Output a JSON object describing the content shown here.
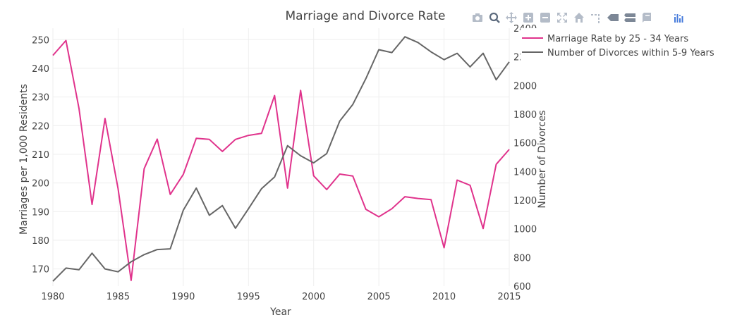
{
  "chart_data": {
    "type": "line",
    "title": "Marriage and Divorce Rate",
    "xlabel": "Year",
    "ylabel": "Marriages per 1,000 Residents",
    "y2label": "Number of Divorces",
    "xlim": [
      1980,
      2015
    ],
    "ylim": [
      164,
      254
    ],
    "y2lim": [
      600,
      2400
    ],
    "x_ticks": [
      1980,
      1985,
      1990,
      1995,
      2000,
      2005,
      2010,
      2015
    ],
    "y_ticks": [
      170,
      180,
      190,
      200,
      210,
      220,
      230,
      240,
      250
    ],
    "y2_ticks": [
      600,
      800,
      1000,
      1200,
      1400,
      1600,
      1800,
      2000,
      2200,
      2400
    ],
    "grid": true,
    "legend_position": "top-right",
    "x": [
      1980,
      1981,
      1982,
      1983,
      1984,
      1985,
      1986,
      1987,
      1988,
      1989,
      1990,
      1991,
      1992,
      1993,
      1994,
      1995,
      1996,
      1997,
      1998,
      1999,
      2000,
      2001,
      2002,
      2003,
      2004,
      2005,
      2006,
      2007,
      2008,
      2009,
      2010,
      2011,
      2012,
      2013,
      2014,
      2015
    ],
    "series": [
      {
        "name": "Marriage Rate by 25 - 34 Years",
        "axis": "y",
        "color": "#e0338c",
        "values": [
          244.5,
          249.7,
          226,
          192.5,
          222.5,
          198,
          166,
          205,
          215.3,
          196,
          203,
          215.6,
          215.2,
          211,
          215.2,
          216.6,
          217.3,
          230.5,
          198.2,
          232.3,
          202.5,
          197.7,
          203.1,
          202.4,
          190.8,
          188.2,
          191,
          195.2,
          194.6,
          194.2,
          177.4,
          201,
          199.2,
          184.1,
          206.5,
          211.7
        ]
      },
      {
        "name": "Number of Divorces within 5-9 Years",
        "axis": "y2",
        "color": "#666666",
        "values": [
          634,
          726,
          714,
          830,
          720,
          700,
          770,
          820,
          855,
          860,
          1130,
          1284,
          1095,
          1162,
          1004,
          1140,
          1280,
          1362,
          1580,
          1510,
          1460,
          1525,
          1752,
          1868,
          2048,
          2250,
          2230,
          2340,
          2300,
          2235,
          2180,
          2225,
          2130,
          2225,
          2040,
          2165
        ]
      }
    ]
  },
  "modebar": {
    "icons": [
      "camera-icon",
      "zoom-icon",
      "pan-icon",
      "zoom-in-icon",
      "zoom-out-icon",
      "autoscale-icon",
      "home-icon",
      "spike-lines-icon",
      "hover-closest-icon",
      "hover-compare-icon",
      "book-icon",
      "plotly-logo-icon"
    ]
  }
}
